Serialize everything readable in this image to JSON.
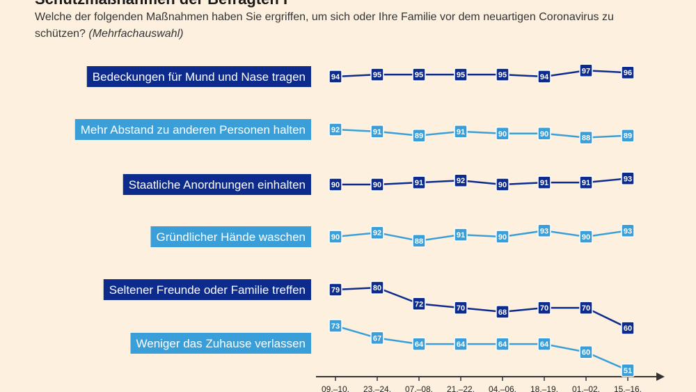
{
  "title": "Schutzmaßnahmen der Befragten I",
  "subtitle": "Welche der folgenden Maßnahmen haben Sie ergriffen, um sich oder Ihre Familie vor dem neuartigen Coronavirus zu schützen?",
  "subtitle_note": "(Mehrfachauswahl)",
  "colors": {
    "dark": "#0d2b8c",
    "light": "#3a9fd8",
    "background": "#fdf0df"
  },
  "chart_data": {
    "type": "line",
    "title": "Schutzmaßnahmen der Befragten I",
    "categories": [
      "09.–10.",
      "23.–24.",
      "07.–08.",
      "21.–22.",
      "04.–06.",
      "18.–19.",
      "01.–02.",
      "15.–16."
    ],
    "ylabel": "",
    "series": [
      {
        "name": "Bedeckungen für Mund und Nase tragen",
        "style": "dark",
        "values": [
          94,
          95,
          95,
          95,
          95,
          94,
          97,
          96
        ]
      },
      {
        "name": "Mehr Abstand zu anderen Personen halten",
        "style": "light",
        "values": [
          92,
          91,
          89,
          91,
          90,
          90,
          88,
          89
        ]
      },
      {
        "name": "Staatliche Anordnungen einhalten",
        "style": "dark",
        "values": [
          90,
          90,
          91,
          92,
          90,
          91,
          91,
          93
        ]
      },
      {
        "name": "Gründlicher Hände waschen",
        "style": "light",
        "values": [
          90,
          92,
          88,
          91,
          90,
          93,
          90,
          93
        ]
      },
      {
        "name": "Seltener Freunde oder Familie treffen",
        "style": "dark",
        "values": [
          79,
          80,
          72,
          70,
          68,
          70,
          70,
          60
        ]
      },
      {
        "name": "Weniger das Zuhause verlassen",
        "style": "light",
        "values": [
          73,
          67,
          64,
          64,
          64,
          64,
          60,
          51
        ]
      }
    ]
  }
}
